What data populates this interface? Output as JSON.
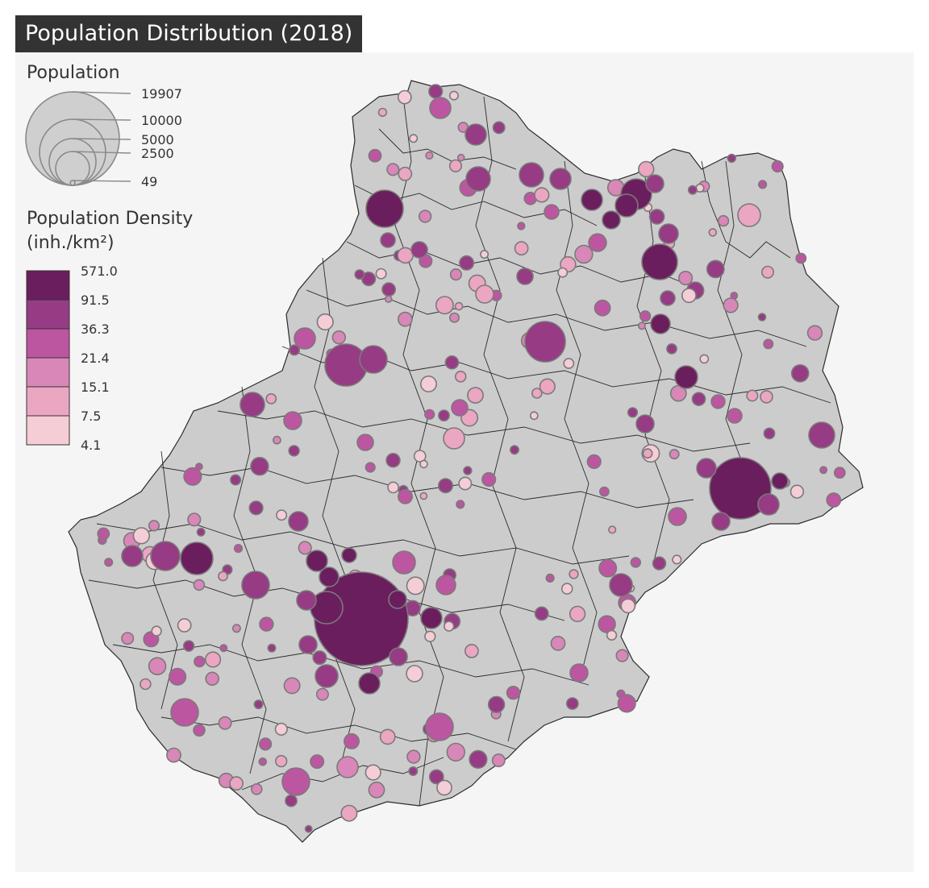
{
  "title": "Population Distribution (2018)",
  "legend": {
    "size_title": "Population",
    "size_values": [
      "19907",
      "10000",
      "5000",
      "2500",
      "49"
    ],
    "color_title_line1": "Population Density",
    "color_title_line2": "(inh./km²)",
    "color_breaks": [
      "571.0",
      "91.5",
      "36.3",
      "21.4",
      "15.1",
      "7.5",
      "4.1"
    ],
    "color_classes": [
      "#6b1e5e",
      "#963b84",
      "#bd56a1",
      "#d887b8",
      "#eba6c2",
      "#f4cdd6"
    ]
  },
  "colors": {
    "background": "#f5f5f5",
    "territory_fill": "#cccccc",
    "territory_border": "#2b2b2b",
    "symbol_border": "#7a7a7a",
    "title_bar": "#333333"
  }
}
